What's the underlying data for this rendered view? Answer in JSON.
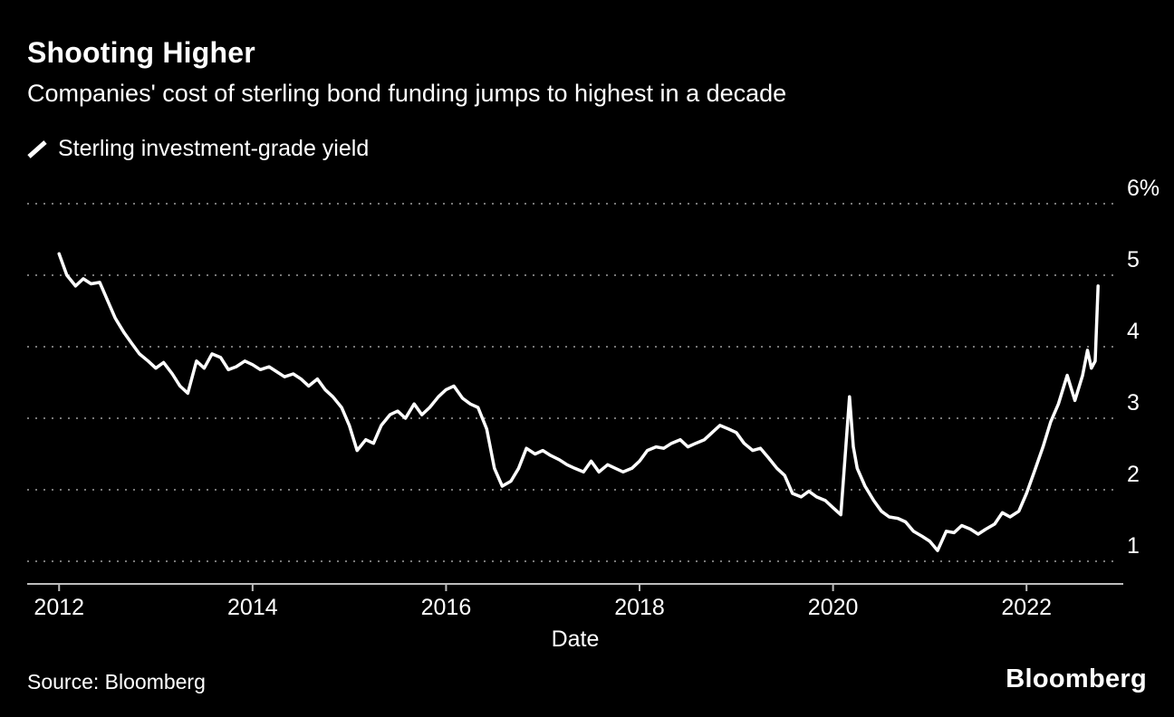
{
  "header": {
    "title": "Shooting Higher",
    "subtitle": "Companies' cost of sterling bond funding jumps to highest in a decade"
  },
  "legend": {
    "label": "Sterling investment-grade yield"
  },
  "footer": {
    "source": "Source: Bloomberg",
    "logo": "Bloomberg"
  },
  "colors": {
    "background": "#000000",
    "text": "#ffffff",
    "line": "#ffffff",
    "gridline": "#787878",
    "axis": "#bdbdbd"
  },
  "chart_data": {
    "type": "line",
    "title": "Shooting Higher",
    "subtitle": "Companies' cost of sterling bond funding jumps to highest in a decade",
    "xlabel": "Date",
    "ylabel": "",
    "legend_position": "top-left",
    "grid": "horizontal-dotted",
    "xlim": [
      2011.67,
      2023.0
    ],
    "ylim": [
      0.9,
      6.3
    ],
    "x_ticks": [
      2012,
      2014,
      2016,
      2018,
      2020,
      2022
    ],
    "x_tick_labels": [
      "2012",
      "2014",
      "2016",
      "2018",
      "2020",
      "2022"
    ],
    "y_ticks": [
      6,
      5,
      4,
      3,
      2,
      1
    ],
    "y_tick_labels": [
      "6%",
      "5",
      "4",
      "3",
      "2",
      "1"
    ],
    "series": [
      {
        "name": "Sterling investment-grade yield",
        "color": "#ffffff",
        "points": [
          [
            2012.0,
            5.3
          ],
          [
            2012.08,
            5.0
          ],
          [
            2012.17,
            4.85
          ],
          [
            2012.25,
            4.95
          ],
          [
            2012.33,
            4.88
          ],
          [
            2012.42,
            4.9
          ],
          [
            2012.5,
            4.65
          ],
          [
            2012.58,
            4.4
          ],
          [
            2012.67,
            4.2
          ],
          [
            2012.75,
            4.05
          ],
          [
            2012.83,
            3.9
          ],
          [
            2012.92,
            3.8
          ],
          [
            2013.0,
            3.7
          ],
          [
            2013.08,
            3.78
          ],
          [
            2013.17,
            3.62
          ],
          [
            2013.25,
            3.45
          ],
          [
            2013.33,
            3.35
          ],
          [
            2013.42,
            3.8
          ],
          [
            2013.5,
            3.7
          ],
          [
            2013.58,
            3.9
          ],
          [
            2013.67,
            3.85
          ],
          [
            2013.75,
            3.68
          ],
          [
            2013.83,
            3.72
          ],
          [
            2013.92,
            3.8
          ],
          [
            2014.0,
            3.75
          ],
          [
            2014.08,
            3.68
          ],
          [
            2014.17,
            3.72
          ],
          [
            2014.25,
            3.65
          ],
          [
            2014.33,
            3.58
          ],
          [
            2014.42,
            3.62
          ],
          [
            2014.5,
            3.55
          ],
          [
            2014.58,
            3.45
          ],
          [
            2014.67,
            3.55
          ],
          [
            2014.75,
            3.4
          ],
          [
            2014.83,
            3.3
          ],
          [
            2014.92,
            3.15
          ],
          [
            2015.0,
            2.9
          ],
          [
            2015.08,
            2.55
          ],
          [
            2015.17,
            2.7
          ],
          [
            2015.25,
            2.65
          ],
          [
            2015.33,
            2.9
          ],
          [
            2015.42,
            3.05
          ],
          [
            2015.5,
            3.1
          ],
          [
            2015.58,
            3.0
          ],
          [
            2015.67,
            3.2
          ],
          [
            2015.75,
            3.05
          ],
          [
            2015.83,
            3.15
          ],
          [
            2015.92,
            3.3
          ],
          [
            2016.0,
            3.4
          ],
          [
            2016.08,
            3.45
          ],
          [
            2016.17,
            3.28
          ],
          [
            2016.25,
            3.2
          ],
          [
            2016.33,
            3.15
          ],
          [
            2016.42,
            2.85
          ],
          [
            2016.5,
            2.3
          ],
          [
            2016.58,
            2.05
          ],
          [
            2016.67,
            2.12
          ],
          [
            2016.75,
            2.3
          ],
          [
            2016.83,
            2.58
          ],
          [
            2016.92,
            2.5
          ],
          [
            2017.0,
            2.55
          ],
          [
            2017.08,
            2.48
          ],
          [
            2017.17,
            2.42
          ],
          [
            2017.25,
            2.35
          ],
          [
            2017.33,
            2.3
          ],
          [
            2017.42,
            2.25
          ],
          [
            2017.5,
            2.4
          ],
          [
            2017.58,
            2.25
          ],
          [
            2017.67,
            2.35
          ],
          [
            2017.75,
            2.3
          ],
          [
            2017.83,
            2.25
          ],
          [
            2017.92,
            2.3
          ],
          [
            2018.0,
            2.4
          ],
          [
            2018.08,
            2.55
          ],
          [
            2018.17,
            2.6
          ],
          [
            2018.25,
            2.58
          ],
          [
            2018.33,
            2.65
          ],
          [
            2018.42,
            2.7
          ],
          [
            2018.5,
            2.6
          ],
          [
            2018.58,
            2.65
          ],
          [
            2018.67,
            2.7
          ],
          [
            2018.75,
            2.8
          ],
          [
            2018.83,
            2.9
          ],
          [
            2018.92,
            2.85
          ],
          [
            2019.0,
            2.8
          ],
          [
            2019.08,
            2.65
          ],
          [
            2019.17,
            2.55
          ],
          [
            2019.25,
            2.58
          ],
          [
            2019.33,
            2.45
          ],
          [
            2019.42,
            2.3
          ],
          [
            2019.5,
            2.2
          ],
          [
            2019.58,
            1.95
          ],
          [
            2019.67,
            1.9
          ],
          [
            2019.75,
            1.98
          ],
          [
            2019.83,
            1.9
          ],
          [
            2019.92,
            1.85
          ],
          [
            2020.0,
            1.75
          ],
          [
            2020.08,
            1.65
          ],
          [
            2020.17,
            3.3
          ],
          [
            2020.21,
            2.6
          ],
          [
            2020.25,
            2.3
          ],
          [
            2020.33,
            2.05
          ],
          [
            2020.42,
            1.85
          ],
          [
            2020.5,
            1.7
          ],
          [
            2020.58,
            1.62
          ],
          [
            2020.67,
            1.6
          ],
          [
            2020.75,
            1.55
          ],
          [
            2020.83,
            1.42
          ],
          [
            2020.92,
            1.35
          ],
          [
            2021.0,
            1.28
          ],
          [
            2021.08,
            1.15
          ],
          [
            2021.17,
            1.42
          ],
          [
            2021.25,
            1.4
          ],
          [
            2021.33,
            1.5
          ],
          [
            2021.42,
            1.45
          ],
          [
            2021.5,
            1.38
          ],
          [
            2021.58,
            1.45
          ],
          [
            2021.67,
            1.52
          ],
          [
            2021.75,
            1.68
          ],
          [
            2021.83,
            1.62
          ],
          [
            2021.92,
            1.7
          ],
          [
            2022.0,
            1.95
          ],
          [
            2022.08,
            2.25
          ],
          [
            2022.17,
            2.6
          ],
          [
            2022.25,
            2.95
          ],
          [
            2022.33,
            3.2
          ],
          [
            2022.42,
            3.6
          ],
          [
            2022.5,
            3.25
          ],
          [
            2022.58,
            3.6
          ],
          [
            2022.63,
            3.95
          ],
          [
            2022.67,
            3.7
          ],
          [
            2022.71,
            3.8
          ],
          [
            2022.74,
            4.85
          ]
        ]
      }
    ]
  }
}
